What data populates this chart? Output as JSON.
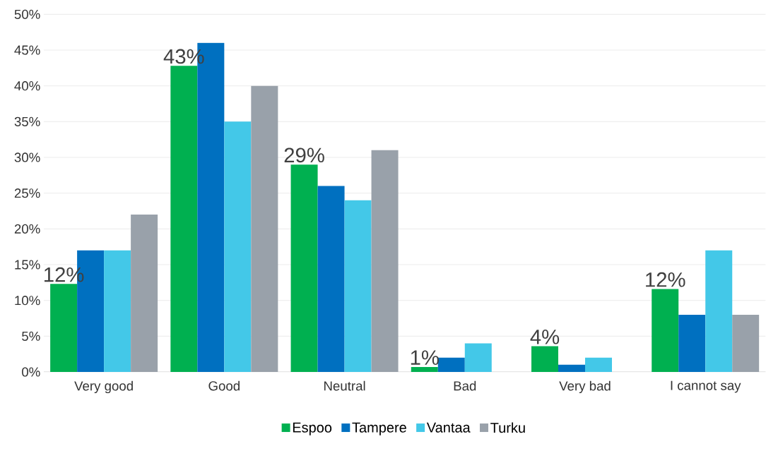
{
  "chart_data": {
    "type": "bar",
    "categories": [
      "Very good",
      "Good",
      "Neutral",
      "Bad",
      "Very bad",
      "I cannot say"
    ],
    "series": [
      {
        "name": "Espoo",
        "color": "#00b050",
        "values": [
          12.3,
          42.8,
          29,
          0.7,
          3.6,
          11.6
        ],
        "value_labels": [
          "12%",
          "43%",
          "29%",
          "1%",
          "4%",
          "12%"
        ]
      },
      {
        "name": "Tampere",
        "color": "#0070c0",
        "values": [
          17,
          46,
          26,
          2,
          1,
          8
        ]
      },
      {
        "name": "Vantaa",
        "color": "#43c8e8",
        "values": [
          17,
          35,
          24,
          4,
          2,
          17
        ]
      },
      {
        "name": "Turku",
        "color": "#99a1aa",
        "values": [
          22,
          40,
          31,
          0,
          0,
          8
        ]
      }
    ],
    "ylim": [
      0,
      50
    ],
    "yticks": [
      {
        "value": 0,
        "label": "0%"
      },
      {
        "value": 5,
        "label": "5%"
      },
      {
        "value": 10,
        "label": "10%"
      },
      {
        "value": 15,
        "label": "15%"
      },
      {
        "value": 20,
        "label": "20%"
      },
      {
        "value": 25,
        "label": "25%"
      },
      {
        "value": 30,
        "label": "30%"
      },
      {
        "value": 35,
        "label": "35%"
      },
      {
        "value": 40,
        "label": "40%"
      },
      {
        "value": 45,
        "label": "45%"
      },
      {
        "value": 50,
        "label": "50%"
      }
    ],
    "grid": "y",
    "legend": "bottom"
  }
}
